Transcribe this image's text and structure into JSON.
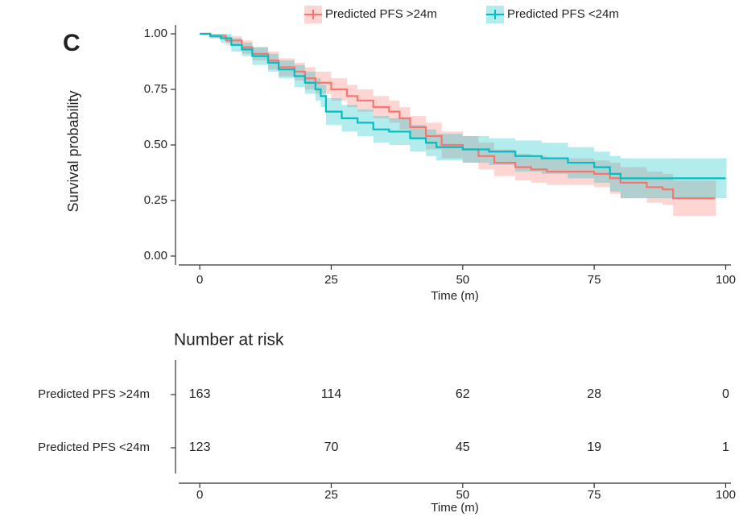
{
  "panel_label": "C",
  "chart_data": [
    {
      "type": "step",
      "ylabel": "Survival probability",
      "xlabel": "Time (m)",
      "xlim": [
        -4,
        101
      ],
      "ylim": [
        -0.04,
        1.04
      ],
      "xticks": [
        0,
        25,
        50,
        75,
        100
      ],
      "yticks": [
        {
          "value": 0,
          "label": "0.00"
        },
        {
          "value": 0.25,
          "label": "0.25"
        },
        {
          "value": 0.5,
          "label": "0.50"
        },
        {
          "value": 0.75,
          "label": "0.75"
        },
        {
          "value": 1,
          "label": "1.00"
        }
      ],
      "series": [
        {
          "name": "Predicted PFS >24m",
          "color": "#F8766D",
          "x": [
            0,
            2,
            5,
            8,
            10,
            13,
            15,
            18,
            20,
            22,
            25,
            28,
            30,
            33,
            36,
            38,
            40,
            43,
            46,
            50,
            53,
            56,
            60,
            63,
            66,
            70,
            75,
            78,
            80,
            85,
            88,
            90,
            98
          ],
          "values": [
            1,
            0.99,
            0.97,
            0.94,
            0.91,
            0.88,
            0.85,
            0.83,
            0.8,
            0.78,
            0.75,
            0.72,
            0.7,
            0.67,
            0.65,
            0.62,
            0.58,
            0.54,
            0.5,
            0.48,
            0.45,
            0.42,
            0.4,
            0.39,
            0.38,
            0.38,
            0.37,
            0.35,
            0.33,
            0.31,
            0.3,
            0.26,
            0.26
          ],
          "lower": [
            1,
            0.98,
            0.95,
            0.91,
            0.88,
            0.84,
            0.81,
            0.79,
            0.75,
            0.73,
            0.7,
            0.67,
            0.65,
            0.62,
            0.6,
            0.57,
            0.53,
            0.48,
            0.44,
            0.42,
            0.39,
            0.36,
            0.34,
            0.33,
            0.32,
            0.32,
            0.31,
            0.28,
            0.26,
            0.24,
            0.23,
            0.18,
            0.18
          ],
          "upper": [
            1,
            1,
            0.99,
            0.97,
            0.94,
            0.92,
            0.89,
            0.87,
            0.85,
            0.83,
            0.8,
            0.77,
            0.75,
            0.72,
            0.7,
            0.67,
            0.63,
            0.6,
            0.56,
            0.54,
            0.51,
            0.48,
            0.46,
            0.45,
            0.44,
            0.44,
            0.43,
            0.42,
            0.4,
            0.38,
            0.37,
            0.34,
            0.34
          ]
        },
        {
          "name": "Predicted PFS <24m",
          "color": "#00BFC4",
          "x": [
            0,
            2,
            4,
            6,
            8,
            10,
            13,
            15,
            18,
            20,
            22,
            23,
            24,
            27,
            30,
            33,
            36,
            40,
            43,
            45,
            50,
            55,
            60,
            65,
            70,
            75,
            78,
            80,
            90,
            100
          ],
          "values": [
            1,
            0.99,
            0.98,
            0.95,
            0.93,
            0.9,
            0.87,
            0.84,
            0.81,
            0.78,
            0.75,
            0.72,
            0.65,
            0.62,
            0.6,
            0.57,
            0.56,
            0.53,
            0.51,
            0.49,
            0.48,
            0.47,
            0.45,
            0.44,
            0.42,
            0.4,
            0.37,
            0.35,
            0.35,
            0.35
          ],
          "lower": [
            1,
            0.98,
            0.96,
            0.92,
            0.9,
            0.86,
            0.83,
            0.8,
            0.76,
            0.73,
            0.7,
            0.67,
            0.59,
            0.56,
            0.54,
            0.51,
            0.5,
            0.47,
            0.45,
            0.43,
            0.42,
            0.41,
            0.38,
            0.37,
            0.35,
            0.33,
            0.29,
            0.26,
            0.26,
            0.26
          ],
          "upper": [
            1,
            1,
            1,
            0.98,
            0.96,
            0.94,
            0.91,
            0.88,
            0.86,
            0.83,
            0.8,
            0.77,
            0.71,
            0.68,
            0.66,
            0.63,
            0.62,
            0.59,
            0.57,
            0.55,
            0.54,
            0.53,
            0.52,
            0.51,
            0.49,
            0.47,
            0.45,
            0.44,
            0.44,
            0.44
          ]
        }
      ]
    },
    {
      "type": "risk_table",
      "title": "Number at risk",
      "xlabel": "Time (m)",
      "xlim": [
        -4,
        101
      ],
      "xticks": [
        0,
        25,
        50,
        75,
        100
      ],
      "series": [
        {
          "name": "Predicted PFS >24m",
          "color": "#F8766D",
          "values": [
            163,
            114,
            62,
            28,
            0
          ]
        },
        {
          "name": "Predicted PFS <24m",
          "color": "#00BFC4",
          "values": [
            123,
            70,
            45,
            19,
            1
          ]
        }
      ]
    }
  ]
}
